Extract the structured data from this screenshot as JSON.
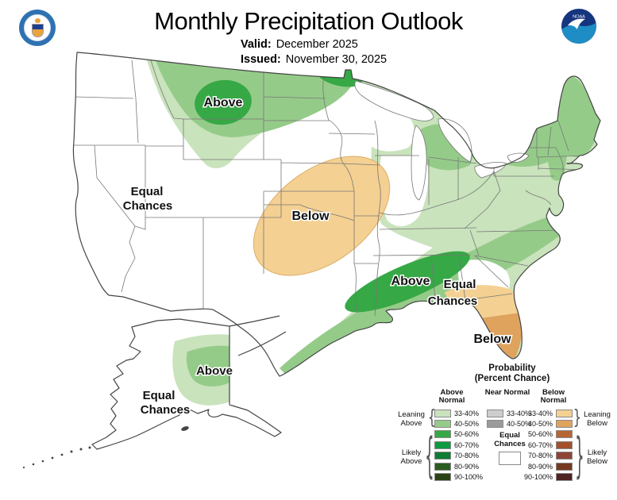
{
  "header": {
    "title": "Monthly Precipitation Outlook",
    "valid_label": "Valid:",
    "valid_value": "December 2025",
    "issued_label": "Issued:",
    "issued_value": "November 30, 2025",
    "noaa_logo_text": "NOAA"
  },
  "map": {
    "labels": {
      "northwest_above": "Above",
      "west_equal_line1": "Equal",
      "west_equal_line2": "Chances",
      "central_below": "Below",
      "southeast_above": "Above",
      "southeast_equal_line1": "Equal",
      "southeast_equal_line2": "Chances",
      "florida_below": "Below",
      "alaska_above": "Above",
      "alaska_equal_line1": "Equal",
      "alaska_equal_line2": "Chances"
    }
  },
  "colors": {
    "above_33_40": "#c9e3bc",
    "above_40_50": "#95cb89",
    "above_50_60": "#36a845",
    "above_60_70": "#0d9a40",
    "above_70_80": "#0e7c35",
    "above_80_90": "#2b5c1f",
    "above_90_100": "#2a4315",
    "near_33_40": "#cdcdcd",
    "near_40_50": "#9b9b9b",
    "below_33_40": "#f4d092",
    "below_40_50": "#dfa35e",
    "below_50_60": "#b66633",
    "below_60_70": "#a3512b",
    "below_70_80": "#8f4438",
    "below_80_90": "#763a1e",
    "below_90_100": "#4d2521"
  },
  "legend": {
    "title_line1": "Probability",
    "title_line2": "(Percent Chance)",
    "above_header": "Above Normal",
    "near_header": "Near Normal",
    "below_header": "Below Normal",
    "above_rows": [
      {
        "range": "33-40%",
        "color": "#c9e3bc"
      },
      {
        "range": "40-50%",
        "color": "#95cb89"
      },
      {
        "range": "50-60%",
        "color": "#36a845"
      },
      {
        "range": "60-70%",
        "color": "#0d9a40"
      },
      {
        "range": "70-80%",
        "color": "#0e7c35"
      },
      {
        "range": "80-90%",
        "color": "#2b5c1f"
      },
      {
        "range": "90-100%",
        "color": "#2a4315"
      }
    ],
    "near_rows": [
      {
        "range": "33-40%",
        "color": "#cdcdcd"
      },
      {
        "range": "40-50%",
        "color": "#9b9b9b"
      }
    ],
    "below_rows": [
      {
        "range": "33-40%",
        "color": "#f4d092"
      },
      {
        "range": "40-50%",
        "color": "#dfa35e"
      },
      {
        "range": "50-60%",
        "color": "#b66633"
      },
      {
        "range": "60-70%",
        "color": "#a3512b"
      },
      {
        "range": "70-80%",
        "color": "#8f4438"
      },
      {
        "range": "80-90%",
        "color": "#763a1e"
      },
      {
        "range": "90-100%",
        "color": "#4d2521"
      }
    ],
    "equal_line1": "Equal",
    "equal_line2": "Chances",
    "leaning_above": "Leaning Above",
    "likely_above": "Likely Above",
    "leaning_below": "Leaning Below",
    "likely_below": "Likely Below",
    "brace_left": "{",
    "brace_right": "}"
  }
}
